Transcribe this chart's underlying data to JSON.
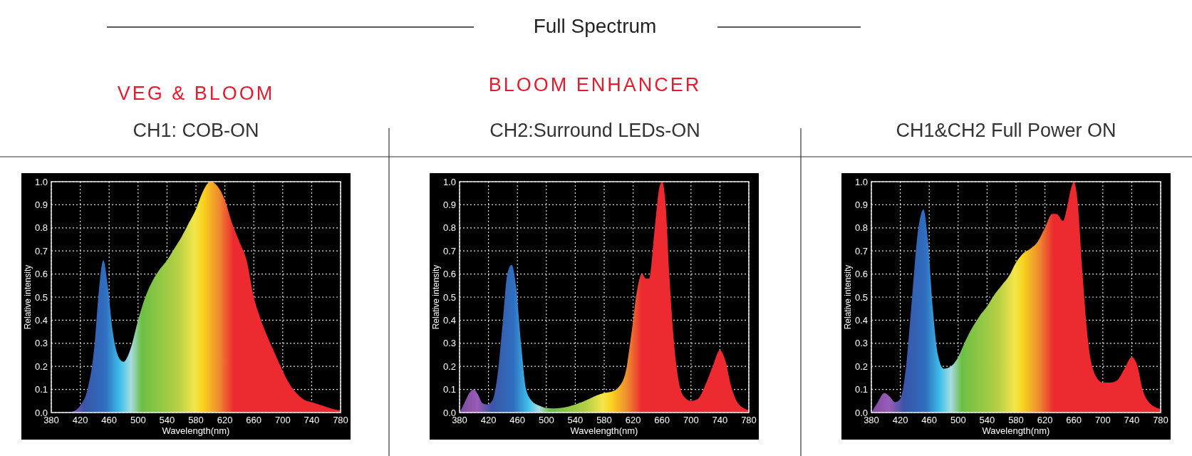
{
  "chart_data": [
    {
      "type": "area",
      "title": "CH1: COB-ON",
      "subtitle": "VEG & BLOOM",
      "annotations": [
        "Full Spectrum"
      ],
      "xlabel": "Wavelength(nm)",
      "ylabel": "Relative intensity",
      "grid": true,
      "x": [
        380,
        400,
        410,
        420,
        430,
        440,
        445,
        452,
        458,
        465,
        475,
        480,
        490,
        500,
        510,
        520,
        530,
        540,
        550,
        560,
        570,
        580,
        590,
        600,
        610,
        620,
        630,
        640,
        650,
        660,
        670,
        680,
        690,
        700,
        710,
        720,
        730,
        740,
        750,
        760,
        770,
        780
      ],
      "series": [
        {
          "color": "#ec2a30",
          "values": [
            0,
            0.002,
            0.005,
            0.03,
            0.1,
            0.3,
            0.5,
            0.66,
            0.55,
            0.35,
            0.23,
            0.22,
            0.28,
            0.4,
            0.5,
            0.57,
            0.62,
            0.66,
            0.71,
            0.76,
            0.82,
            0.88,
            0.96,
            1.0,
            0.98,
            0.92,
            0.82,
            0.74,
            0.66,
            0.5,
            0.4,
            0.32,
            0.25,
            0.18,
            0.12,
            0.08,
            0.055,
            0.045,
            0.035,
            0.025,
            0.015,
            0.01
          ]
        }
      ],
      "xlim": [
        380,
        780
      ],
      "ylim": [
        0,
        1
      ],
      "xticks": [
        380,
        420,
        460,
        500,
        540,
        580,
        620,
        660,
        700,
        740,
        780
      ],
      "yticks": [
        {
          "value": 0,
          "label": "0.0"
        },
        {
          "value": 0.1,
          "label": "0.1"
        },
        {
          "value": 0.2,
          "label": "0.2"
        },
        {
          "value": 0.3,
          "label": "0.3"
        },
        {
          "value": 0.4,
          "label": "0.4"
        },
        {
          "value": 0.5,
          "label": "0.5"
        },
        {
          "value": 0.6,
          "label": "0.6"
        },
        {
          "value": 0.7,
          "label": "0.7"
        },
        {
          "value": 0.8,
          "label": "0.8"
        },
        {
          "value": 0.9,
          "label": "0.9"
        },
        {
          "value": 1,
          "label": "1.0"
        }
      ]
    },
    {
      "type": "area",
      "title": "CH2:Surround LEDs-ON",
      "subtitle": "BLOOM ENHANCER",
      "xlabel": "Wavelength(nm)",
      "ylabel": "Relative intensity",
      "grid": true,
      "x": [
        380,
        385,
        395,
        400,
        405,
        412,
        418,
        425,
        432,
        440,
        446,
        452,
        458,
        465,
        472,
        480,
        490,
        500,
        510,
        520,
        540,
        560,
        570,
        580,
        590,
        600,
        610,
        618,
        625,
        632,
        638,
        642,
        650,
        656,
        660,
        665,
        670,
        680,
        690,
        700,
        710,
        720,
        730,
        740,
        748,
        755,
        765,
        780
      ],
      "series": [
        {
          "color": "#ec2a30",
          "values": [
            0,
            0.03,
            0.09,
            0.1,
            0.08,
            0.04,
            0.035,
            0.05,
            0.15,
            0.4,
            0.6,
            0.64,
            0.55,
            0.3,
            0.1,
            0.05,
            0.03,
            0.02,
            0.018,
            0.02,
            0.035,
            0.06,
            0.075,
            0.085,
            0.09,
            0.11,
            0.18,
            0.35,
            0.52,
            0.6,
            0.58,
            0.58,
            0.8,
            0.97,
            1.0,
            0.9,
            0.6,
            0.2,
            0.07,
            0.05,
            0.06,
            0.12,
            0.2,
            0.27,
            0.22,
            0.12,
            0.04,
            0.01
          ]
        }
      ],
      "xlim": [
        380,
        780
      ],
      "ylim": [
        0,
        1
      ],
      "xticks": [
        380,
        420,
        460,
        500,
        540,
        580,
        620,
        660,
        700,
        740,
        780
      ],
      "yticks": [
        {
          "value": 0,
          "label": "0.0"
        },
        {
          "value": 0.1,
          "label": "0.1"
        },
        {
          "value": 0.2,
          "label": "0.2"
        },
        {
          "value": 0.3,
          "label": "0.3"
        },
        {
          "value": 0.4,
          "label": "0.4"
        },
        {
          "value": 0.5,
          "label": "0.5"
        },
        {
          "value": 0.6,
          "label": "0.6"
        },
        {
          "value": 0.7,
          "label": "0.7"
        },
        {
          "value": 0.8,
          "label": "0.8"
        },
        {
          "value": 0.9,
          "label": "0.9"
        },
        {
          "value": 1,
          "label": "1.0"
        }
      ]
    },
    {
      "type": "area",
      "title": "CH1&CH2 Full Power ON",
      "xlabel": "Wavelength(nm)",
      "ylabel": "Relative intensity",
      "grid": true,
      "x": [
        380,
        388,
        398,
        405,
        413,
        420,
        428,
        435,
        445,
        452,
        458,
        465,
        472,
        480,
        490,
        500,
        510,
        520,
        530,
        540,
        550,
        560,
        570,
        580,
        590,
        600,
        610,
        620,
        630,
        636,
        645,
        650,
        656,
        660,
        665,
        672,
        680,
        690,
        700,
        710,
        720,
        730,
        740,
        748,
        755,
        765,
        780
      ],
      "series": [
        {
          "color": "#ec2a30",
          "values": [
            0,
            0.04,
            0.085,
            0.07,
            0.045,
            0.06,
            0.2,
            0.45,
            0.8,
            0.88,
            0.75,
            0.45,
            0.25,
            0.19,
            0.2,
            0.24,
            0.31,
            0.37,
            0.42,
            0.46,
            0.51,
            0.55,
            0.59,
            0.65,
            0.69,
            0.71,
            0.74,
            0.8,
            0.86,
            0.86,
            0.83,
            0.88,
            0.97,
            1.0,
            0.92,
            0.6,
            0.3,
            0.16,
            0.13,
            0.13,
            0.14,
            0.19,
            0.24,
            0.2,
            0.1,
            0.04,
            0.015
          ]
        }
      ],
      "xlim": [
        380,
        780
      ],
      "ylim": [
        0,
        1
      ],
      "xticks": [
        380,
        420,
        460,
        500,
        540,
        580,
        620,
        660,
        700,
        740,
        780
      ],
      "yticks": [
        {
          "value": 0,
          "label": "0.0"
        },
        {
          "value": 0.1,
          "label": "0.1"
        },
        {
          "value": 0.2,
          "label": "0.2"
        },
        {
          "value": 0.3,
          "label": "0.3"
        },
        {
          "value": 0.4,
          "label": "0.4"
        },
        {
          "value": 0.5,
          "label": "0.5"
        },
        {
          "value": 0.6,
          "label": "0.6"
        },
        {
          "value": 0.7,
          "label": "0.7"
        },
        {
          "value": 0.8,
          "label": "0.8"
        },
        {
          "value": 0.9,
          "label": "0.9"
        },
        {
          "value": 1,
          "label": "1.0"
        }
      ]
    }
  ]
}
